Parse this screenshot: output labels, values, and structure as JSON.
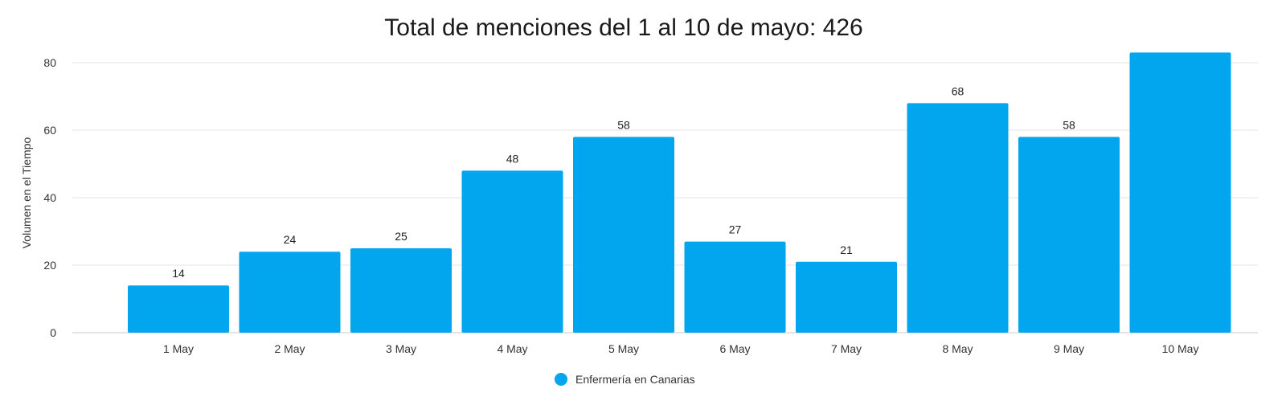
{
  "chart_data": {
    "type": "bar",
    "title": "Total de menciones del 1 al 10 de mayo: 426",
    "xlabel": "",
    "ylabel": "Volumen en el Tiempo",
    "categories": [
      "1 May",
      "2 May",
      "3 May",
      "4 May",
      "5 May",
      "6 May",
      "7 May",
      "8 May",
      "9 May",
      "10 May"
    ],
    "series": [
      {
        "name": "Enfermería en Canarias",
        "values": [
          14,
          24,
          25,
          48,
          58,
          27,
          21,
          68,
          58,
          83
        ],
        "color": "#02a6ef",
        "labels": [
          "14",
          "24",
          "25",
          "48",
          "58",
          "27",
          "21",
          "68",
          "58",
          ""
        ]
      }
    ],
    "ylim": [
      0,
      80
    ],
    "yticks": [
      0,
      20,
      40,
      60,
      80
    ],
    "grid": true,
    "legend_position": "bottom-center"
  }
}
